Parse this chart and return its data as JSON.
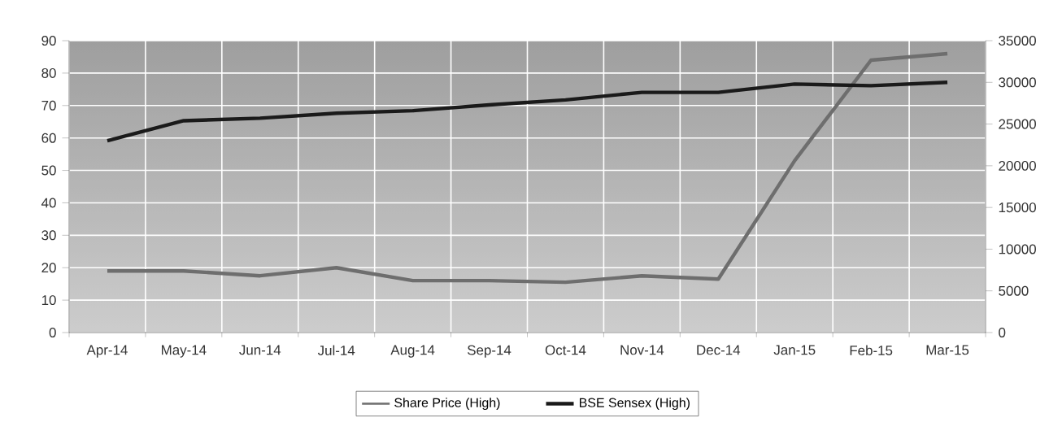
{
  "chart_data": {
    "type": "line",
    "categories": [
      "Apr-14",
      "May-14",
      "Jun-14",
      "Jul-14",
      "Aug-14",
      "Sep-14",
      "Oct-14",
      "Nov-14",
      "Dec-14",
      "Jan-15",
      "Feb-15",
      "Mar-15"
    ],
    "series": [
      {
        "name": "Share Price (High)",
        "color": "#6e6e6e",
        "values": [
          19,
          19,
          17.5,
          20,
          16,
          16,
          15.5,
          17.5,
          16.5,
          53,
          84,
          86
        ]
      },
      {
        "name": "BSE Sensex (High)",
        "color": "#1a1a1a",
        "axis": "y2",
        "values": [
          23000,
          25400,
          25700,
          26300,
          26600,
          27300,
          27900,
          28800,
          28800,
          29800,
          29600,
          30000
        ]
      }
    ],
    "ylim": [
      0,
      90
    ],
    "yticks": [
      0,
      10,
      20,
      30,
      40,
      50,
      60,
      70,
      80,
      90
    ],
    "y2lim": [
      0,
      35000
    ],
    "y2ticks": [
      0,
      5000,
      10000,
      15000,
      20000,
      25000,
      30000,
      35000
    ],
    "grid": true,
    "legend": "bottom"
  }
}
